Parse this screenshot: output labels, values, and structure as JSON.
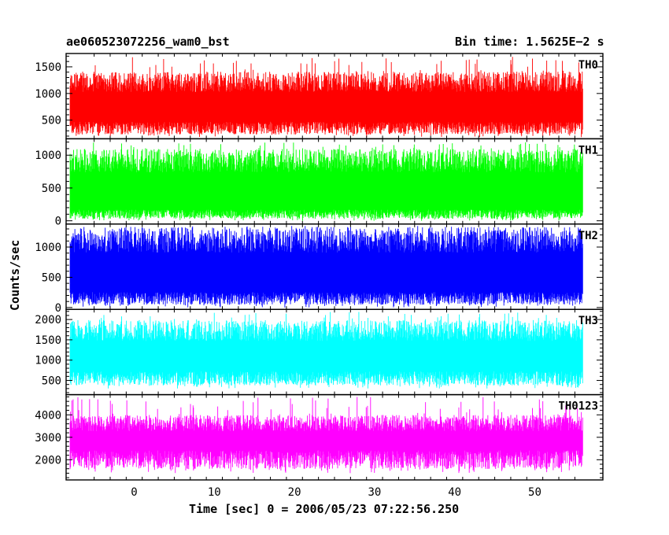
{
  "header": {
    "title": "ae060523072256_wam0_bst",
    "bin_time": "Bin time: 1.5625E−2 s"
  },
  "axes": {
    "xlabel": "Time [sec] 0 = 2006/05/23 07:22:56.250",
    "ylabel": "Counts/sec"
  },
  "chart_data": {
    "type": "line",
    "shared_x": true,
    "x_range": [
      -8.5,
      58.5
    ],
    "data_x_range": [
      -8,
      56
    ],
    "bin_time_s": 0.015625,
    "x_ticks": [
      0,
      10,
      20,
      30,
      40,
      50
    ],
    "panels": [
      {
        "name": "TH0",
        "color": "#ff0000",
        "ylim": [
          150,
          1750
        ],
        "y_ticks": [
          500,
          1000,
          1500
        ],
        "band_low": 350,
        "band_high": 1200,
        "spike_min": 180,
        "spike_max": 1700
      },
      {
        "name": "TH1",
        "color": "#00ff00",
        "ylim": [
          -50,
          1250
        ],
        "y_ticks": [
          0,
          500,
          1000
        ],
        "band_low": 100,
        "band_high": 900,
        "spike_min": 0,
        "spike_max": 1200
      },
      {
        "name": "TH2",
        "color": "#0000ff",
        "ylim": [
          -30,
          1380
        ],
        "y_ticks": [
          0,
          500,
          1000
        ],
        "band_low": 150,
        "band_high": 1100,
        "spike_min": 0,
        "spike_max": 1350
      },
      {
        "name": "TH3",
        "color": "#00ffff",
        "ylim": [
          150,
          2250
        ],
        "y_ticks": [
          500,
          1000,
          1500,
          2000
        ],
        "band_low": 550,
        "band_high": 1700,
        "spike_min": 300,
        "spike_max": 2200
      },
      {
        "name": "TH0123",
        "color": "#ff00ff",
        "ylim": [
          1100,
          4900
        ],
        "y_ticks": [
          2000,
          3000,
          4000
        ],
        "band_low": 2000,
        "band_high": 3600,
        "spike_min": 1400,
        "spike_max": 4800
      }
    ]
  }
}
